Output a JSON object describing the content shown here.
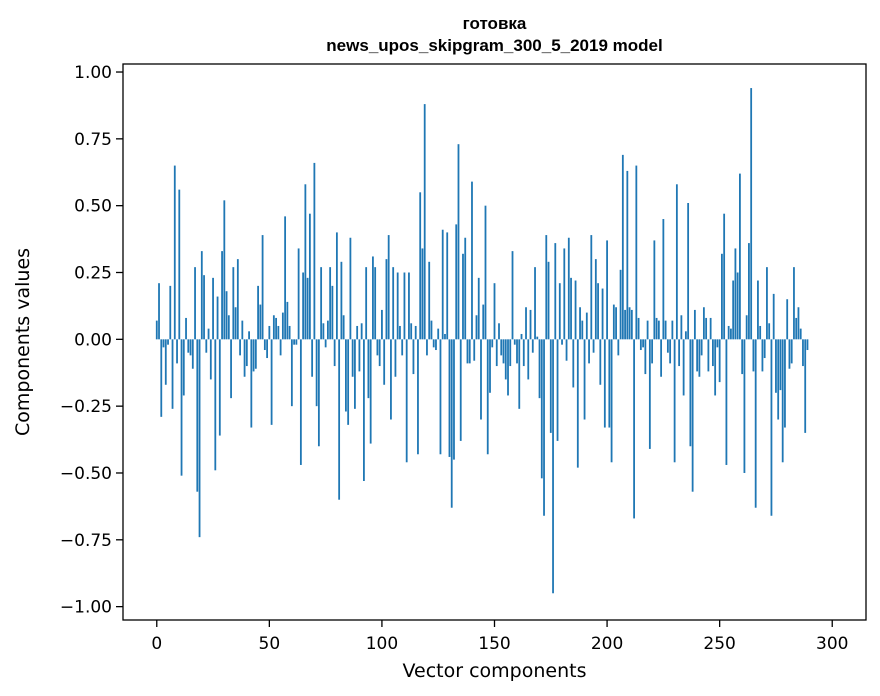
{
  "chart_data": {
    "type": "bar",
    "title_line1": "готовка",
    "title_line2": "news_upos_skipgram_300_5_2019 model",
    "xlabel": "Vector components",
    "ylabel": "Components values",
    "xlim": [
      -15,
      315
    ],
    "ylim": [
      -1.05,
      1.03
    ],
    "xticks": [
      0,
      50,
      100,
      150,
      200,
      250,
      300
    ],
    "xtick_labels": [
      "0",
      "50",
      "100",
      "150",
      "200",
      "250",
      "300"
    ],
    "yticks": [
      1.0,
      0.75,
      0.5,
      0.25,
      0.0,
      -0.25,
      -0.5,
      -0.75,
      -1.0
    ],
    "ytick_labels": [
      "1.00",
      "0.75",
      "0.50",
      "0.25",
      "0.00",
      "−0.25",
      "−0.50",
      "−0.75",
      "−1.00"
    ],
    "bar_color": "#1f77b4",
    "values": [
      0.07,
      0.21,
      -0.29,
      -0.03,
      -0.17,
      -0.02,
      0.2,
      -0.26,
      0.65,
      -0.09,
      0.56,
      -0.51,
      -0.21,
      0.08,
      -0.05,
      -0.06,
      -0.11,
      0.27,
      -0.57,
      -0.74,
      0.33,
      0.24,
      -0.05,
      0.04,
      -0.15,
      0.23,
      -0.49,
      0.16,
      -0.36,
      0.33,
      0.52,
      0.18,
      0.09,
      -0.22,
      0.27,
      0.12,
      0.3,
      -0.06,
      0.07,
      -0.14,
      -0.1,
      0.03,
      -0.33,
      -0.12,
      -0.11,
      0.2,
      0.13,
      0.39,
      -0.04,
      -0.07,
      0.05,
      -0.32,
      0.09,
      0.08,
      0.05,
      -0.06,
      0.1,
      0.46,
      0.14,
      0.05,
      -0.25,
      -0.02,
      -0.02,
      0.34,
      -0.47,
      0.25,
      0.58,
      0.23,
      0.47,
      -0.14,
      0.66,
      -0.25,
      -0.4,
      0.27,
      0.06,
      -0.03,
      0.07,
      0.27,
      0.2,
      -0.1,
      0.4,
      -0.6,
      0.29,
      0.09,
      -0.27,
      -0.32,
      0.38,
      -0.14,
      -0.26,
      0.05,
      -0.12,
      0.06,
      -0.53,
      0.27,
      -0.22,
      -0.39,
      0.31,
      0.27,
      -0.06,
      -0.1,
      0.11,
      -0.17,
      0.3,
      0.39,
      -0.3,
      0.27,
      -0.14,
      0.25,
      0.05,
      -0.06,
      0.25,
      -0.46,
      0.25,
      0.06,
      -0.13,
      0.05,
      -0.43,
      0.55,
      0.34,
      0.88,
      -0.06,
      0.29,
      0.07,
      -0.03,
      -0.04,
      0.04,
      -0.43,
      0.41,
      0.02,
      0.4,
      -0.44,
      -0.63,
      -0.45,
      0.43,
      0.73,
      -0.38,
      0.32,
      0.38,
      -0.09,
      -0.09,
      0.59,
      -0.08,
      0.09,
      0.23,
      -0.3,
      0.13,
      0.5,
      -0.43,
      -0.2,
      -0.03,
      0.21,
      -0.1,
      0.06,
      -0.06,
      -0.09,
      -0.15,
      -0.21,
      -0.1,
      0.33,
      -0.02,
      -0.09,
      -0.26,
      0.02,
      -0.1,
      0.12,
      -0.15,
      0.11,
      -0.05,
      0.27,
      0.01,
      -0.22,
      -0.52,
      -0.66,
      0.39,
      0.29,
      -0.35,
      -0.95,
      0.36,
      -0.38,
      0.21,
      -0.02,
      0.34,
      -0.08,
      0.38,
      0.23,
      -0.18,
      0.22,
      -0.48,
      0.12,
      0.07,
      -0.3,
      0.1,
      -0.09,
      0.39,
      -0.05,
      0.3,
      0.21,
      -0.17,
      0.19,
      -0.33,
      0.37,
      -0.33,
      -0.46,
      0.13,
      0.12,
      -0.06,
      0.26,
      0.69,
      0.11,
      0.63,
      0.12,
      0.11,
      -0.67,
      0.65,
      0.08,
      -0.04,
      -0.03,
      -0.13,
      0.07,
      -0.41,
      -0.09,
      0.37,
      0.08,
      0.07,
      -0.14,
      0.45,
      0.07,
      -0.05,
      -0.09,
      0.07,
      -0.46,
      0.58,
      -0.1,
      0.09,
      -0.21,
      0.03,
      0.51,
      -0.4,
      -0.57,
      0.11,
      -0.12,
      -0.14,
      -0.06,
      0.12,
      0.08,
      -0.12,
      0.08,
      -0.1,
      -0.21,
      -0.03,
      -0.16,
      0.32,
      0.47,
      -0.47,
      0.05,
      0.04,
      0.22,
      0.34,
      0.25,
      0.62,
      -0.13,
      -0.5,
      0.09,
      0.36,
      0.94,
      -0.12,
      -0.63,
      0.22,
      0.05,
      -0.12,
      -0.07,
      0.27,
      0.06,
      -0.66,
      0.17,
      -0.2,
      -0.3,
      -0.19,
      -0.46,
      -0.33,
      0.15,
      -0.11,
      -0.09,
      0.27,
      0.08,
      0.12,
      0.04,
      -0.1,
      -0.35,
      -0.04
    ]
  }
}
